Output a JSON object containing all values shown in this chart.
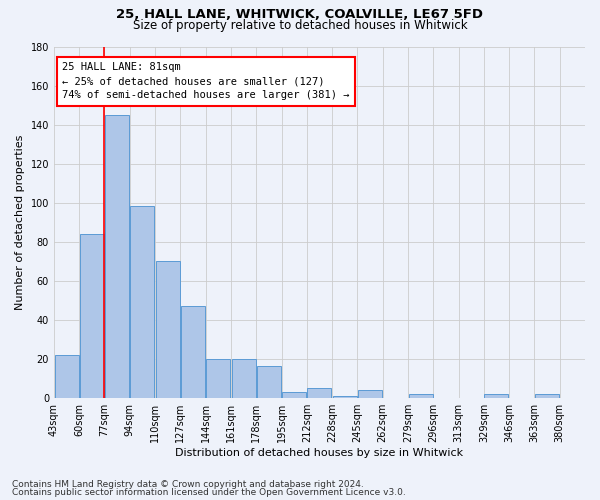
{
  "title1": "25, HALL LANE, WHITWICK, COALVILLE, LE67 5FD",
  "title2": "Size of property relative to detached houses in Whitwick",
  "xlabel": "Distribution of detached houses by size in Whitwick",
  "ylabel": "Number of detached properties",
  "categories": [
    "43sqm",
    "60sqm",
    "77sqm",
    "94sqm",
    "110sqm",
    "127sqm",
    "144sqm",
    "161sqm",
    "178sqm",
    "195sqm",
    "212sqm",
    "228sqm",
    "245sqm",
    "262sqm",
    "279sqm",
    "296sqm",
    "313sqm",
    "329sqm",
    "346sqm",
    "363sqm",
    "380sqm"
  ],
  "values": [
    22,
    84,
    145,
    98,
    70,
    47,
    20,
    20,
    16,
    3,
    5,
    1,
    4,
    0,
    2,
    0,
    0,
    2,
    0,
    2,
    0
  ],
  "bar_color": "#aec6e8",
  "bar_edge_color": "#5b9bd5",
  "vline_bin_index": 2,
  "annotation_text": "25 HALL LANE: 81sqm\n← 25% of detached houses are smaller (127)\n74% of semi-detached houses are larger (381) →",
  "annotation_box_color": "white",
  "annotation_box_edge_color": "red",
  "vline_color": "red",
  "ylim": [
    0,
    180
  ],
  "yticks": [
    0,
    20,
    40,
    60,
    80,
    100,
    120,
    140,
    160,
    180
  ],
  "grid_color": "#cccccc",
  "background_color": "#eef2fa",
  "footer1": "Contains HM Land Registry data © Crown copyright and database right 2024.",
  "footer2": "Contains public sector information licensed under the Open Government Licence v3.0.",
  "title1_fontsize": 9.5,
  "title2_fontsize": 8.5,
  "xlabel_fontsize": 8,
  "ylabel_fontsize": 8,
  "tick_fontsize": 7,
  "footer_fontsize": 6.5,
  "annotation_fontsize": 7.5
}
